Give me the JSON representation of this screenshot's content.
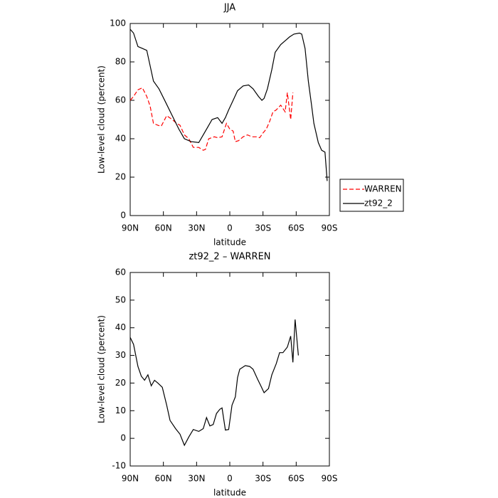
{
  "chart_data": [
    {
      "type": "line",
      "title": "JJA",
      "xlabel": "latitude",
      "ylabel": "Low-level cloud (percent)",
      "xlim": [
        90,
        -90
      ],
      "ylim": [
        0,
        100
      ],
      "xticks": [
        {
          "value": 90,
          "label": "90N"
        },
        {
          "value": 60,
          "label": "60N"
        },
        {
          "value": 30,
          "label": "30N"
        },
        0,
        {
          "value": -30,
          "label": "30S"
        },
        {
          "value": -60,
          "label": "60S"
        },
        {
          "value": -90,
          "label": "90S"
        }
      ],
      "yticks": [
        0,
        20,
        40,
        60,
        80,
        100
      ],
      "legend": "right",
      "series": [
        {
          "name": "WARREN",
          "color": "#ff0000",
          "dash": "dashed",
          "x": [
            90,
            87,
            83,
            79,
            75,
            72,
            69,
            65,
            62,
            57,
            52,
            48,
            45,
            41,
            37,
            33,
            28,
            24,
            22,
            19,
            14,
            11,
            7,
            3,
            0,
            -3,
            -5,
            -8,
            -12,
            -16,
            -20,
            -24,
            -27,
            -30,
            -33,
            -36,
            -39,
            -42,
            -46,
            -50,
            -52,
            -55,
            -57
          ],
          "values": [
            60,
            62,
            65.5,
            66.5,
            62,
            57,
            48,
            47,
            46.5,
            52,
            50,
            48,
            47,
            42,
            40,
            35.5,
            35.5,
            34,
            34.5,
            40,
            41,
            40.5,
            41,
            48,
            45,
            44,
            38.5,
            39,
            41,
            42,
            41,
            41,
            40.5,
            43,
            45,
            49,
            54,
            55,
            57.5,
            54,
            64,
            50,
            64
          ]
        },
        {
          "name": "zt92_2",
          "color": "#000000",
          "dash": "solid",
          "x": [
            90,
            87,
            83,
            79,
            75,
            69,
            64,
            58,
            52,
            46,
            41,
            35,
            28,
            24,
            20,
            16,
            11,
            7,
            4,
            1,
            -3,
            -7,
            -12,
            -17,
            -21,
            -26,
            -29,
            -31,
            -34,
            -38,
            -41,
            -46,
            -50,
            -54,
            -58,
            -63,
            -65,
            -68,
            -71,
            -74,
            -76,
            -80,
            -83,
            -86,
            -88
          ],
          "values": [
            97,
            95,
            88,
            87,
            86,
            70,
            66,
            59,
            52,
            45,
            40,
            38.5,
            38,
            42,
            46,
            50,
            51,
            48,
            51,
            55,
            60,
            65,
            67.5,
            68,
            66,
            62,
            60,
            61,
            66,
            76,
            85,
            89,
            91,
            93,
            94.5,
            95,
            94.5,
            87,
            70,
            57,
            48,
            38,
            34,
            33,
            18
          ]
        }
      ]
    },
    {
      "type": "line",
      "title": "zt92_2 – WARREN",
      "xlabel": "latitude",
      "ylabel": "Low-level cloud (percent)",
      "xlim": [
        90,
        -90
      ],
      "ylim": [
        -10,
        60
      ],
      "xticks": [
        {
          "value": 90,
          "label": "90N"
        },
        {
          "value": 60,
          "label": "60N"
        },
        {
          "value": 30,
          "label": "30N"
        },
        0,
        {
          "value": -30,
          "label": "30S"
        },
        {
          "value": -60,
          "label": "60S"
        },
        {
          "value": -90,
          "label": "90S"
        }
      ],
      "yticks": [
        -10,
        0,
        10,
        20,
        30,
        40,
        50,
        60
      ],
      "color": "#000000",
      "x": [
        90,
        87,
        83,
        80,
        77,
        74,
        71,
        68,
        65,
        61,
        57,
        54,
        49,
        45,
        41,
        37,
        33,
        28,
        24,
        21,
        18,
        15,
        12,
        9,
        7,
        4,
        1,
        -2,
        -5,
        -7,
        -9,
        -14,
        -18,
        -21,
        -25,
        -28,
        -31,
        -35,
        -38,
        -42,
        -45,
        -48,
        -52,
        -55,
        -57,
        -59,
        -62
      ],
      "values": [
        36.5,
        34,
        26,
        22.5,
        21,
        23,
        19,
        21,
        20,
        18.5,
        12,
        6.5,
        3.5,
        1.5,
        -2.5,
        0.5,
        3.2,
        2.5,
        3.5,
        7.5,
        4.5,
        5,
        9,
        10.5,
        11,
        3,
        3.2,
        12,
        15,
        22,
        25,
        26.3,
        26,
        25,
        21.5,
        19,
        16.5,
        18,
        23,
        27,
        31,
        31,
        33,
        37,
        27.5,
        43,
        30
      ]
    }
  ]
}
